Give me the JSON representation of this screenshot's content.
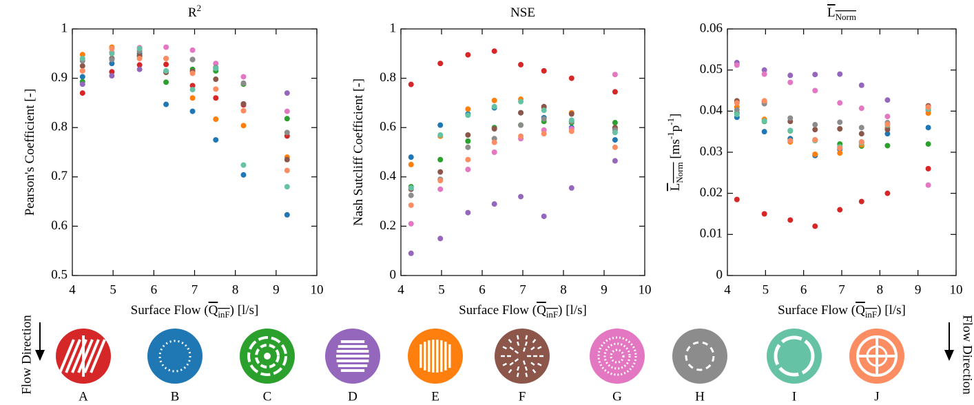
{
  "chart_data": [
    {
      "type": "scatter",
      "title": [
        {
          "text": "R"
        },
        {
          "text": "2",
          "style": "sup"
        }
      ],
      "xlabel": [
        {
          "text": "Surface Flow ("
        },
        {
          "text": "Q",
          "over": true
        },
        {
          "text": "inF",
          "style": "sub",
          "over": true
        },
        {
          "text": ") [l/s]"
        }
      ],
      "ylabel": [
        {
          "text": "Pearson's Coefficient [-]"
        }
      ],
      "xlim": [
        4,
        10
      ],
      "ylim": [
        0.5,
        1
      ],
      "xticks": [
        4,
        5,
        6,
        7,
        8,
        9,
        10
      ],
      "yticks": [
        0.5,
        0.6,
        0.7,
        0.8,
        0.9,
        1
      ],
      "x": [
        4.25,
        4.97,
        5.65,
        6.3,
        6.95,
        7.52,
        8.2,
        9.27
      ],
      "series": [
        {
          "name": "A",
          "color": "#d62728",
          "values": [
            0.87,
            0.913,
            0.927,
            0.928,
            0.885,
            0.86,
            0.846,
            0.783
          ]
        },
        {
          "name": "B",
          "color": "#1f77b4",
          "values": [
            0.903,
            0.93,
            0.95,
            0.847,
            0.833,
            0.775,
            0.704,
            0.623
          ]
        },
        {
          "name": "C",
          "color": "#2ca02c",
          "values": [
            0.893,
            0.94,
            0.945,
            0.892,
            0.918,
            0.915,
            0.888,
            0.818
          ]
        },
        {
          "name": "D",
          "color": "#9467bd",
          "values": [
            0.888,
            0.905,
            0.918,
            0.913,
            0.938,
            0.92,
            0.848,
            0.87
          ]
        },
        {
          "name": "E",
          "color": "#ff7f0e",
          "values": [
            0.948,
            0.963,
            0.955,
            0.912,
            0.86,
            0.817,
            0.804,
            0.74
          ]
        },
        {
          "name": "F",
          "color": "#8c564b",
          "values": [
            0.925,
            0.94,
            0.945,
            0.912,
            0.914,
            0.898,
            0.848,
            0.735
          ]
        },
        {
          "name": "G",
          "color": "#e377c2",
          "values": [
            0.915,
            0.952,
            0.962,
            0.963,
            0.957,
            0.93,
            0.903,
            0.833
          ]
        },
        {
          "name": "H",
          "color": "#8c8c8c",
          "values": [
            0.935,
            0.938,
            0.955,
            0.94,
            0.938,
            0.922,
            0.89,
            0.79
          ]
        },
        {
          "name": "I",
          "color": "#66c2a5",
          "values": [
            0.94,
            0.95,
            0.96,
            0.915,
            0.877,
            0.92,
            0.724,
            0.68
          ]
        },
        {
          "name": "J",
          "color": "#fc8d62",
          "values": [
            0.915,
            0.96,
            0.94,
            0.94,
            0.91,
            0.878,
            0.834,
            0.713
          ]
        }
      ]
    },
    {
      "type": "scatter",
      "title": [
        {
          "text": "NSE"
        }
      ],
      "xlabel": [
        {
          "text": "Surface Flow ("
        },
        {
          "text": "Q",
          "over": true
        },
        {
          "text": "inF",
          "style": "sub",
          "over": true
        },
        {
          "text": ") [l/s]"
        }
      ],
      "ylabel": [
        {
          "text": "Nash Sutcliff Coefficient [-]"
        }
      ],
      "xlim": [
        4,
        10
      ],
      "ylim": [
        0,
        1
      ],
      "xticks": [
        4,
        5,
        6,
        7,
        8,
        9,
        10
      ],
      "yticks": [
        0,
        0.2,
        0.4,
        0.6,
        0.8,
        1
      ],
      "x": [
        4.25,
        4.97,
        5.65,
        6.3,
        6.95,
        7.52,
        8.2,
        9.27
      ],
      "series": [
        {
          "color": "#d62728",
          "values": [
            0.775,
            0.86,
            0.895,
            0.91,
            0.855,
            0.83,
            0.8,
            0.745
          ]
        },
        {
          "color": "#1f77b4",
          "values": [
            0.48,
            0.61,
            0.655,
            0.68,
            0.66,
            0.64,
            0.6,
            0.55
          ]
        },
        {
          "color": "#2ca02c",
          "values": [
            0.36,
            0.47,
            0.545,
            0.6,
            0.61,
            0.625,
            0.62,
            0.62
          ]
        },
        {
          "color": "#9467bd",
          "values": [
            0.09,
            0.15,
            0.255,
            0.29,
            0.32,
            0.24,
            0.355,
            0.465
          ]
        },
        {
          "color": "#ff7f0e",
          "values": [
            0.45,
            0.565,
            0.675,
            0.71,
            0.715,
            0.68,
            0.66,
            0.595
          ]
        },
        {
          "color": "#8c564b",
          "values": [
            0.35,
            0.42,
            0.57,
            0.595,
            0.66,
            0.685,
            0.655,
            0.6
          ]
        },
        {
          "color": "#e377c2",
          "values": [
            0.21,
            0.35,
            0.43,
            0.5,
            0.555,
            0.59,
            0.595,
            0.815
          ]
        },
        {
          "color": "#8c8c8c",
          "values": [
            0.325,
            0.39,
            0.52,
            0.555,
            0.61,
            0.635,
            0.625,
            0.59
          ]
        },
        {
          "color": "#66c2a5",
          "values": [
            0.355,
            0.57,
            0.65,
            0.685,
            0.705,
            0.67,
            0.63,
            0.58
          ]
        },
        {
          "color": "#fc8d62",
          "values": [
            0.285,
            0.385,
            0.47,
            0.54,
            0.565,
            0.575,
            0.585,
            0.52
          ]
        }
      ]
    },
    {
      "type": "scatter",
      "title": [
        {
          "text": "L",
          "over": true
        },
        {
          "text": "Norm",
          "style": "sub",
          "over": true
        }
      ],
      "xlabel": [
        {
          "text": "Surface Flow ("
        },
        {
          "text": "Q",
          "over": true
        },
        {
          "text": "inF",
          "style": "sub",
          "over": true
        },
        {
          "text": ") [l/s]"
        }
      ],
      "ylabel": [
        {
          "text": "L",
          "over": true
        },
        {
          "text": "Norm",
          "style": "sub",
          "over": true
        },
        {
          "text": " [ms"
        },
        {
          "text": "-1",
          "style": "sup"
        },
        {
          "text": "p"
        },
        {
          "text": "-1",
          "style": "sup"
        },
        {
          "text": "]"
        }
      ],
      "xlim": [
        4,
        10
      ],
      "ylim": [
        0,
        0.06
      ],
      "xticks": [
        4,
        5,
        6,
        7,
        8,
        9,
        10
      ],
      "yticks": [
        0,
        0.01,
        0.02,
        0.03,
        0.04,
        0.05,
        0.06
      ],
      "x": [
        4.25,
        4.97,
        5.65,
        6.3,
        6.95,
        7.52,
        8.2,
        9.27
      ],
      "series": [
        {
          "color": "#d62728",
          "values": [
            0.0185,
            0.015,
            0.0135,
            0.012,
            0.016,
            0.018,
            0.02,
            0.026
          ]
        },
        {
          "color": "#1f77b4",
          "values": [
            0.0385,
            0.035,
            0.0333,
            0.0292,
            0.0307,
            0.0325,
            0.0345,
            0.036
          ]
        },
        {
          "color": "#2ca02c",
          "values": [
            0.0395,
            0.0375,
            0.0352,
            0.033,
            0.032,
            0.0315,
            0.0316,
            0.032
          ]
        },
        {
          "color": "#9467bd",
          "values": [
            0.0518,
            0.05,
            0.0487,
            0.0489,
            0.049,
            0.0463,
            0.0427,
            0.0402
          ]
        },
        {
          "color": "#ff7f0e",
          "values": [
            0.041,
            0.038,
            0.0325,
            0.0295,
            0.0298,
            0.0318,
            0.036,
            0.0395
          ]
        },
        {
          "color": "#8c564b",
          "values": [
            0.0425,
            0.0423,
            0.0375,
            0.0355,
            0.0357,
            0.0345,
            0.0355,
            0.0413
          ]
        },
        {
          "color": "#e377c2",
          "values": [
            0.0512,
            0.049,
            0.047,
            0.045,
            0.042,
            0.0407,
            0.0387,
            0.022
          ]
        },
        {
          "color": "#8c8c8c",
          "values": [
            0.0403,
            0.0418,
            0.0383,
            0.0367,
            0.0373,
            0.036,
            0.0372,
            0.0408
          ]
        },
        {
          "color": "#66c2a5",
          "values": [
            0.0392,
            0.0376,
            0.0353,
            0.0328,
            0.0313,
            0.0323,
            0.0366,
            0.0405
          ]
        },
        {
          "color": "#fc8d62",
          "values": [
            0.042,
            0.0425,
            0.0328,
            0.033,
            0.031,
            0.0325,
            0.0368,
            0.041
          ]
        }
      ]
    }
  ],
  "flow_direction": "Flow Direction"
}
